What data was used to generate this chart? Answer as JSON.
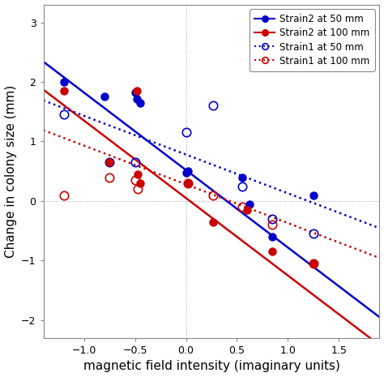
{
  "title": "",
  "xlabel": "magnetic field intensity (imaginary units)",
  "ylabel": "Change in colony size (mm)",
  "xlim": [
    -1.4,
    1.9
  ],
  "ylim": [
    -2.3,
    3.3
  ],
  "xticks": [
    -1.0,
    -0.5,
    0.0,
    0.5,
    1.0,
    1.5
  ],
  "yticks": [
    -2,
    -1,
    0,
    1,
    2,
    3
  ],
  "bg_color": "#ffffff",
  "grid_color": "#b0b0b0",
  "strain2_50_x": [
    -1.2,
    -0.8,
    -0.5,
    -0.48,
    -0.45,
    0.0,
    0.02,
    0.55,
    0.62,
    0.85,
    1.25
  ],
  "strain2_50_y": [
    2.0,
    1.75,
    1.82,
    1.72,
    1.65,
    0.47,
    0.5,
    0.4,
    -0.05,
    -0.6,
    0.1
  ],
  "strain2_100_x": [
    -1.2,
    -0.75,
    -0.48,
    -0.47,
    -0.45,
    0.02,
    0.27,
    0.6,
    0.85,
    1.25
  ],
  "strain2_100_y": [
    1.85,
    0.65,
    1.85,
    0.45,
    0.3,
    0.3,
    -0.35,
    -0.15,
    -0.85,
    -1.05
  ],
  "strain1_50_x": [
    -1.2,
    -0.75,
    -0.5,
    0.0,
    0.27,
    0.55,
    0.85,
    1.25
  ],
  "strain1_50_y": [
    1.45,
    0.65,
    0.65,
    1.15,
    1.6,
    0.25,
    -0.3,
    -0.55
  ],
  "strain1_100_x": [
    -1.2,
    -0.75,
    -0.5,
    -0.47,
    0.02,
    0.27,
    0.55,
    0.85,
    1.25
  ],
  "strain1_100_y": [
    0.1,
    0.4,
    0.35,
    0.2,
    0.3,
    0.1,
    -0.1,
    -0.4,
    -1.05
  ],
  "slope_strain2": -1.3,
  "intercept_strain2_50": 0.52,
  "intercept_strain2_100": 0.05,
  "slope_strain1": -0.65,
  "intercept_strain1_50": 0.78,
  "intercept_strain1_100": 0.28,
  "color_blue": "#0000cc",
  "color_red": "#cc0000",
  "marker_size": 6.5,
  "line_width": 1.8,
  "font_size_label": 11,
  "font_size_tick": 9,
  "font_size_legend": 8.5
}
